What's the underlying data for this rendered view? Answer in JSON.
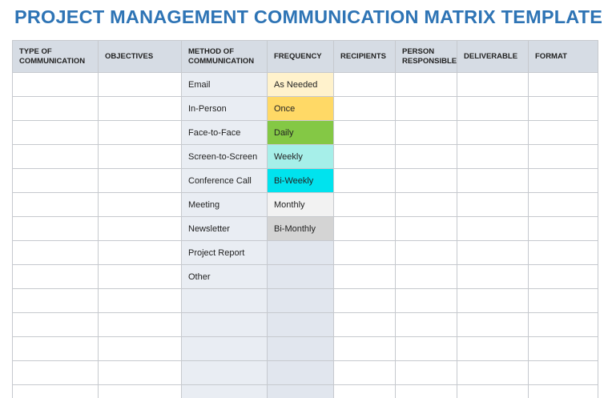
{
  "title": "PROJECT MANAGEMENT COMMUNICATION MATRIX TEMPLATE",
  "table": {
    "headers": [
      "TYPE OF COMMUNICATION",
      "OBJECTIVES",
      "METHOD OF COMMUNICATION",
      "FREQUENCY",
      "RECIPIENTS",
      "PERSON RESPONSIBLE",
      "DELIVERABLE",
      "FORMAT"
    ],
    "methods": [
      "Email",
      "In-Person",
      "Face-to-Face",
      "Screen-to-Screen",
      "Conference Call",
      "Meeting",
      "Newsletter",
      "Project Report",
      "Other"
    ],
    "frequencies": [
      "As Needed",
      "Once",
      "Daily",
      "Weekly",
      "Bi-Weekly",
      "Monthly",
      "Bi-Monthly"
    ],
    "frequency_colors": [
      "#fff2cc",
      "#ffd966",
      "#84c845",
      "#a6efe9",
      "#00e3ee",
      "#f2f2f2",
      "#d4d4d4"
    ]
  }
}
